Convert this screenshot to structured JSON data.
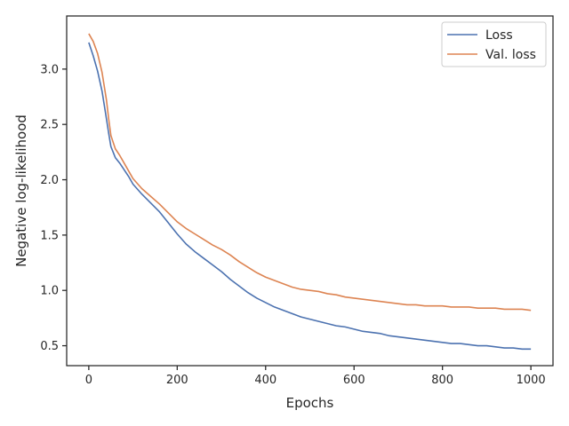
{
  "chart_data": {
    "type": "line",
    "title": "",
    "xlabel": "Epochs",
    "ylabel": "Negative log-likelihood",
    "xlim": [
      -50,
      1050
    ],
    "ylim": [
      0.32,
      3.48
    ],
    "x_ticks": [
      0,
      200,
      400,
      600,
      800,
      1000
    ],
    "y_ticks": [
      0.5,
      1.0,
      1.5,
      2.0,
      2.5,
      3.0
    ],
    "x_tick_labels": [
      "0",
      "200",
      "400",
      "600",
      "800",
      "1000"
    ],
    "y_tick_labels": [
      "0.5",
      "1.0",
      "1.5",
      "2.0",
      "2.5",
      "3.0"
    ],
    "grid": false,
    "legend": "top-right",
    "series": [
      {
        "name": "Loss",
        "color": "#4c72b0",
        "points": [
          [
            0,
            3.24
          ],
          [
            10,
            3.12
          ],
          [
            20,
            2.98
          ],
          [
            30,
            2.8
          ],
          [
            40,
            2.55
          ],
          [
            45,
            2.42
          ],
          [
            50,
            2.3
          ],
          [
            60,
            2.2
          ],
          [
            70,
            2.15
          ],
          [
            80,
            2.09
          ],
          [
            90,
            2.03
          ],
          [
            100,
            1.96
          ],
          [
            120,
            1.87
          ],
          [
            140,
            1.79
          ],
          [
            160,
            1.71
          ],
          [
            180,
            1.61
          ],
          [
            200,
            1.51
          ],
          [
            220,
            1.42
          ],
          [
            240,
            1.35
          ],
          [
            260,
            1.29
          ],
          [
            280,
            1.23
          ],
          [
            300,
            1.17
          ],
          [
            320,
            1.1
          ],
          [
            340,
            1.04
          ],
          [
            360,
            0.98
          ],
          [
            380,
            0.93
          ],
          [
            400,
            0.89
          ],
          [
            420,
            0.85
          ],
          [
            440,
            0.82
          ],
          [
            460,
            0.79
          ],
          [
            480,
            0.76
          ],
          [
            500,
            0.74
          ],
          [
            520,
            0.72
          ],
          [
            540,
            0.7
          ],
          [
            560,
            0.68
          ],
          [
            580,
            0.67
          ],
          [
            600,
            0.65
          ],
          [
            620,
            0.63
          ],
          [
            640,
            0.62
          ],
          [
            660,
            0.61
          ],
          [
            680,
            0.59
          ],
          [
            700,
            0.58
          ],
          [
            720,
            0.57
          ],
          [
            740,
            0.56
          ],
          [
            760,
            0.55
          ],
          [
            780,
            0.54
          ],
          [
            800,
            0.53
          ],
          [
            820,
            0.52
          ],
          [
            840,
            0.52
          ],
          [
            860,
            0.51
          ],
          [
            880,
            0.5
          ],
          [
            900,
            0.5
          ],
          [
            920,
            0.49
          ],
          [
            940,
            0.48
          ],
          [
            960,
            0.48
          ],
          [
            980,
            0.47
          ],
          [
            1000,
            0.47
          ]
        ]
      },
      {
        "name": "Val. loss",
        "color": "#dd8452",
        "points": [
          [
            0,
            3.32
          ],
          [
            10,
            3.25
          ],
          [
            20,
            3.14
          ],
          [
            30,
            2.97
          ],
          [
            40,
            2.72
          ],
          [
            45,
            2.55
          ],
          [
            50,
            2.4
          ],
          [
            60,
            2.28
          ],
          [
            70,
            2.22
          ],
          [
            80,
            2.15
          ],
          [
            90,
            2.08
          ],
          [
            100,
            2.01
          ],
          [
            120,
            1.92
          ],
          [
            140,
            1.85
          ],
          [
            160,
            1.78
          ],
          [
            180,
            1.7
          ],
          [
            200,
            1.62
          ],
          [
            220,
            1.56
          ],
          [
            240,
            1.51
          ],
          [
            260,
            1.46
          ],
          [
            280,
            1.41
          ],
          [
            300,
            1.37
          ],
          [
            320,
            1.32
          ],
          [
            340,
            1.26
          ],
          [
            360,
            1.21
          ],
          [
            380,
            1.16
          ],
          [
            400,
            1.12
          ],
          [
            420,
            1.09
          ],
          [
            440,
            1.06
          ],
          [
            460,
            1.03
          ],
          [
            480,
            1.01
          ],
          [
            500,
            1.0
          ],
          [
            520,
            0.99
          ],
          [
            540,
            0.97
          ],
          [
            560,
            0.96
          ],
          [
            580,
            0.94
          ],
          [
            600,
            0.93
          ],
          [
            620,
            0.92
          ],
          [
            640,
            0.91
          ],
          [
            660,
            0.9
          ],
          [
            680,
            0.89
          ],
          [
            700,
            0.88
          ],
          [
            720,
            0.87
          ],
          [
            740,
            0.87
          ],
          [
            760,
            0.86
          ],
          [
            780,
            0.86
          ],
          [
            800,
            0.86
          ],
          [
            820,
            0.85
          ],
          [
            840,
            0.85
          ],
          [
            860,
            0.85
          ],
          [
            880,
            0.84
          ],
          [
            900,
            0.84
          ],
          [
            920,
            0.84
          ],
          [
            940,
            0.83
          ],
          [
            960,
            0.83
          ],
          [
            980,
            0.83
          ],
          [
            1000,
            0.82
          ]
        ]
      }
    ]
  }
}
